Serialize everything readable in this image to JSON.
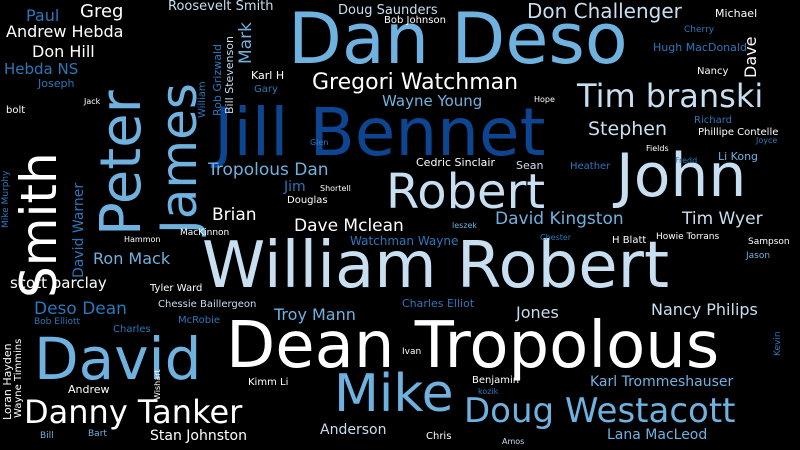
{
  "words": [
    "Dan Deso",
    "Jill Bennet",
    "William Robert",
    "Dean Tropolous",
    "John",
    "David",
    "Robert",
    "Peter",
    "James",
    "Smith",
    "Mike",
    "Doug Westacott",
    "Danny Tanker",
    "Tim branski",
    "Gregori Watchman",
    "Don Challenger",
    "Roosevelt Smith",
    "Doug Saunders",
    "Bob Johnson",
    "Michael",
    "Cherry",
    "Hugh MacDonald",
    "Dave",
    "Nancy",
    "Paul",
    "Greg",
    "Andrew Hebda",
    "Don Hill",
    "Hebda NS",
    "Joseph",
    "Jack",
    "bolt",
    "Rob Grizwald",
    "Bill Stevenson",
    "Mark",
    "Karl H",
    "Gary",
    "William",
    "Wayne Young",
    "Hope",
    "Stephen",
    "Richard",
    "Phillipe Contelle",
    "Joyce",
    "Fields",
    "Fredd",
    "Li Kong",
    "Glen",
    "Cedric Sinclair",
    "Sean",
    "Heather",
    "Tropolous Dan",
    "Jim",
    "Shortell",
    "Douglas",
    "Brian",
    "Dave Mclean",
    "David Kingston",
    "Tim Wyer",
    "leszek",
    "Chester",
    "H Blatt",
    "Howie Torrans",
    "Sampson",
    "Jason",
    "Hammon",
    "MacKinnon",
    "Watchman Wayne",
    "Mike Murphy",
    "David Warner",
    "Ron Mack",
    "scott barclay",
    "Tyler Ward",
    "Chessie Baillergeon",
    "Charles Elliot",
    "Jones",
    "Nancy Philips",
    "Deso Dean",
    "Bob Elliott",
    "McRobie",
    "Troy Mann",
    "Charles",
    "Kevin",
    "Loran Hayden",
    "Wayne Timmins",
    "Ivan",
    "Wishart",
    "Kimm Li",
    "Benjamin",
    "Karl Trommeshauser",
    "Andrew",
    "kozik",
    "Bill",
    "Bart",
    "Stan Johnston",
    "Anderson",
    "Chris",
    "Amos",
    "Lana MacLeod"
  ],
  "colors": {
    "background": "#000000",
    "white": "#ffffff",
    "sky": "#6fb2e0",
    "blue": "#2b77bb",
    "navy": "#0d4591",
    "pale": "#c8dff1"
  }
}
